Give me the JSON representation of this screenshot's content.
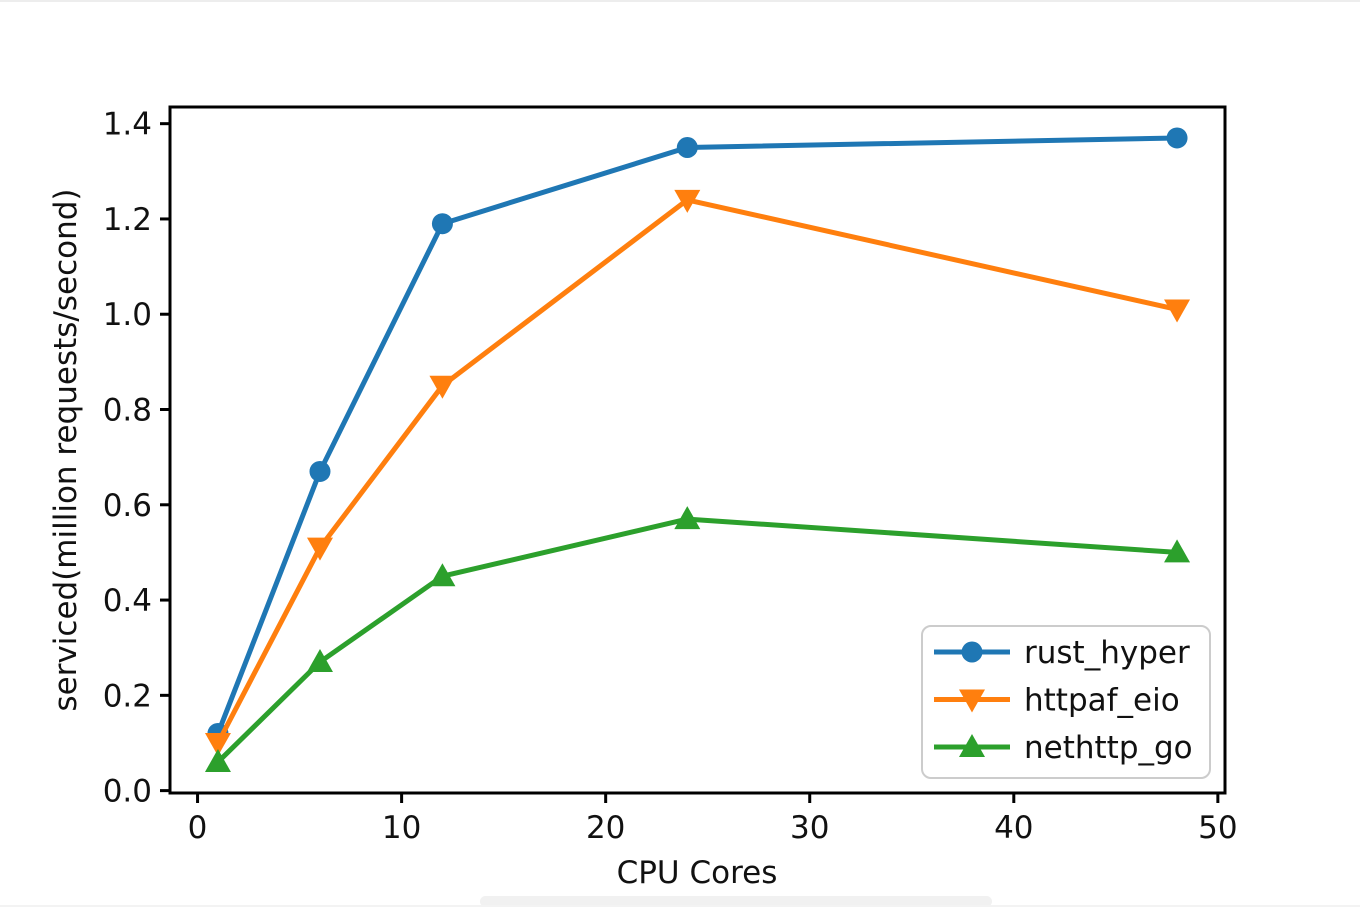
{
  "chart_data": {
    "type": "line",
    "title": "",
    "xlabel": "CPU Cores",
    "ylabel": "serviced(million requests/second)",
    "x": [
      1,
      6,
      12,
      24,
      48
    ],
    "series": [
      {
        "name": "rust_hyper",
        "color": "#1f77b4",
        "marker": "circle",
        "values": [
          0.12,
          0.67,
          1.19,
          1.35,
          1.37
        ]
      },
      {
        "name": "httpaf_eio",
        "color": "#ff7f0e",
        "marker": "triangle-down",
        "values": [
          0.1,
          0.51,
          0.85,
          1.24,
          1.01
        ]
      },
      {
        "name": "nethttp_go",
        "color": "#2ca02c",
        "marker": "triangle-up",
        "values": [
          0.06,
          0.27,
          0.45,
          0.57,
          0.5
        ]
      }
    ],
    "xlim": [
      -1.35,
      50.35
    ],
    "ylim": [
      -0.005,
      1.435
    ],
    "xticks": [
      0,
      10,
      20,
      30,
      40,
      50
    ],
    "yticks": [
      "0.0",
      "0.2",
      "0.4",
      "0.6",
      "0.8",
      "1.0",
      "1.2",
      "1.4"
    ],
    "grid": false,
    "legend_position": "lower right"
  },
  "colors": {
    "axis": "#000000",
    "text": "#111111",
    "background": "#ffffff",
    "legend_border": "#cccccc",
    "legend_background": "#ffffff"
  }
}
